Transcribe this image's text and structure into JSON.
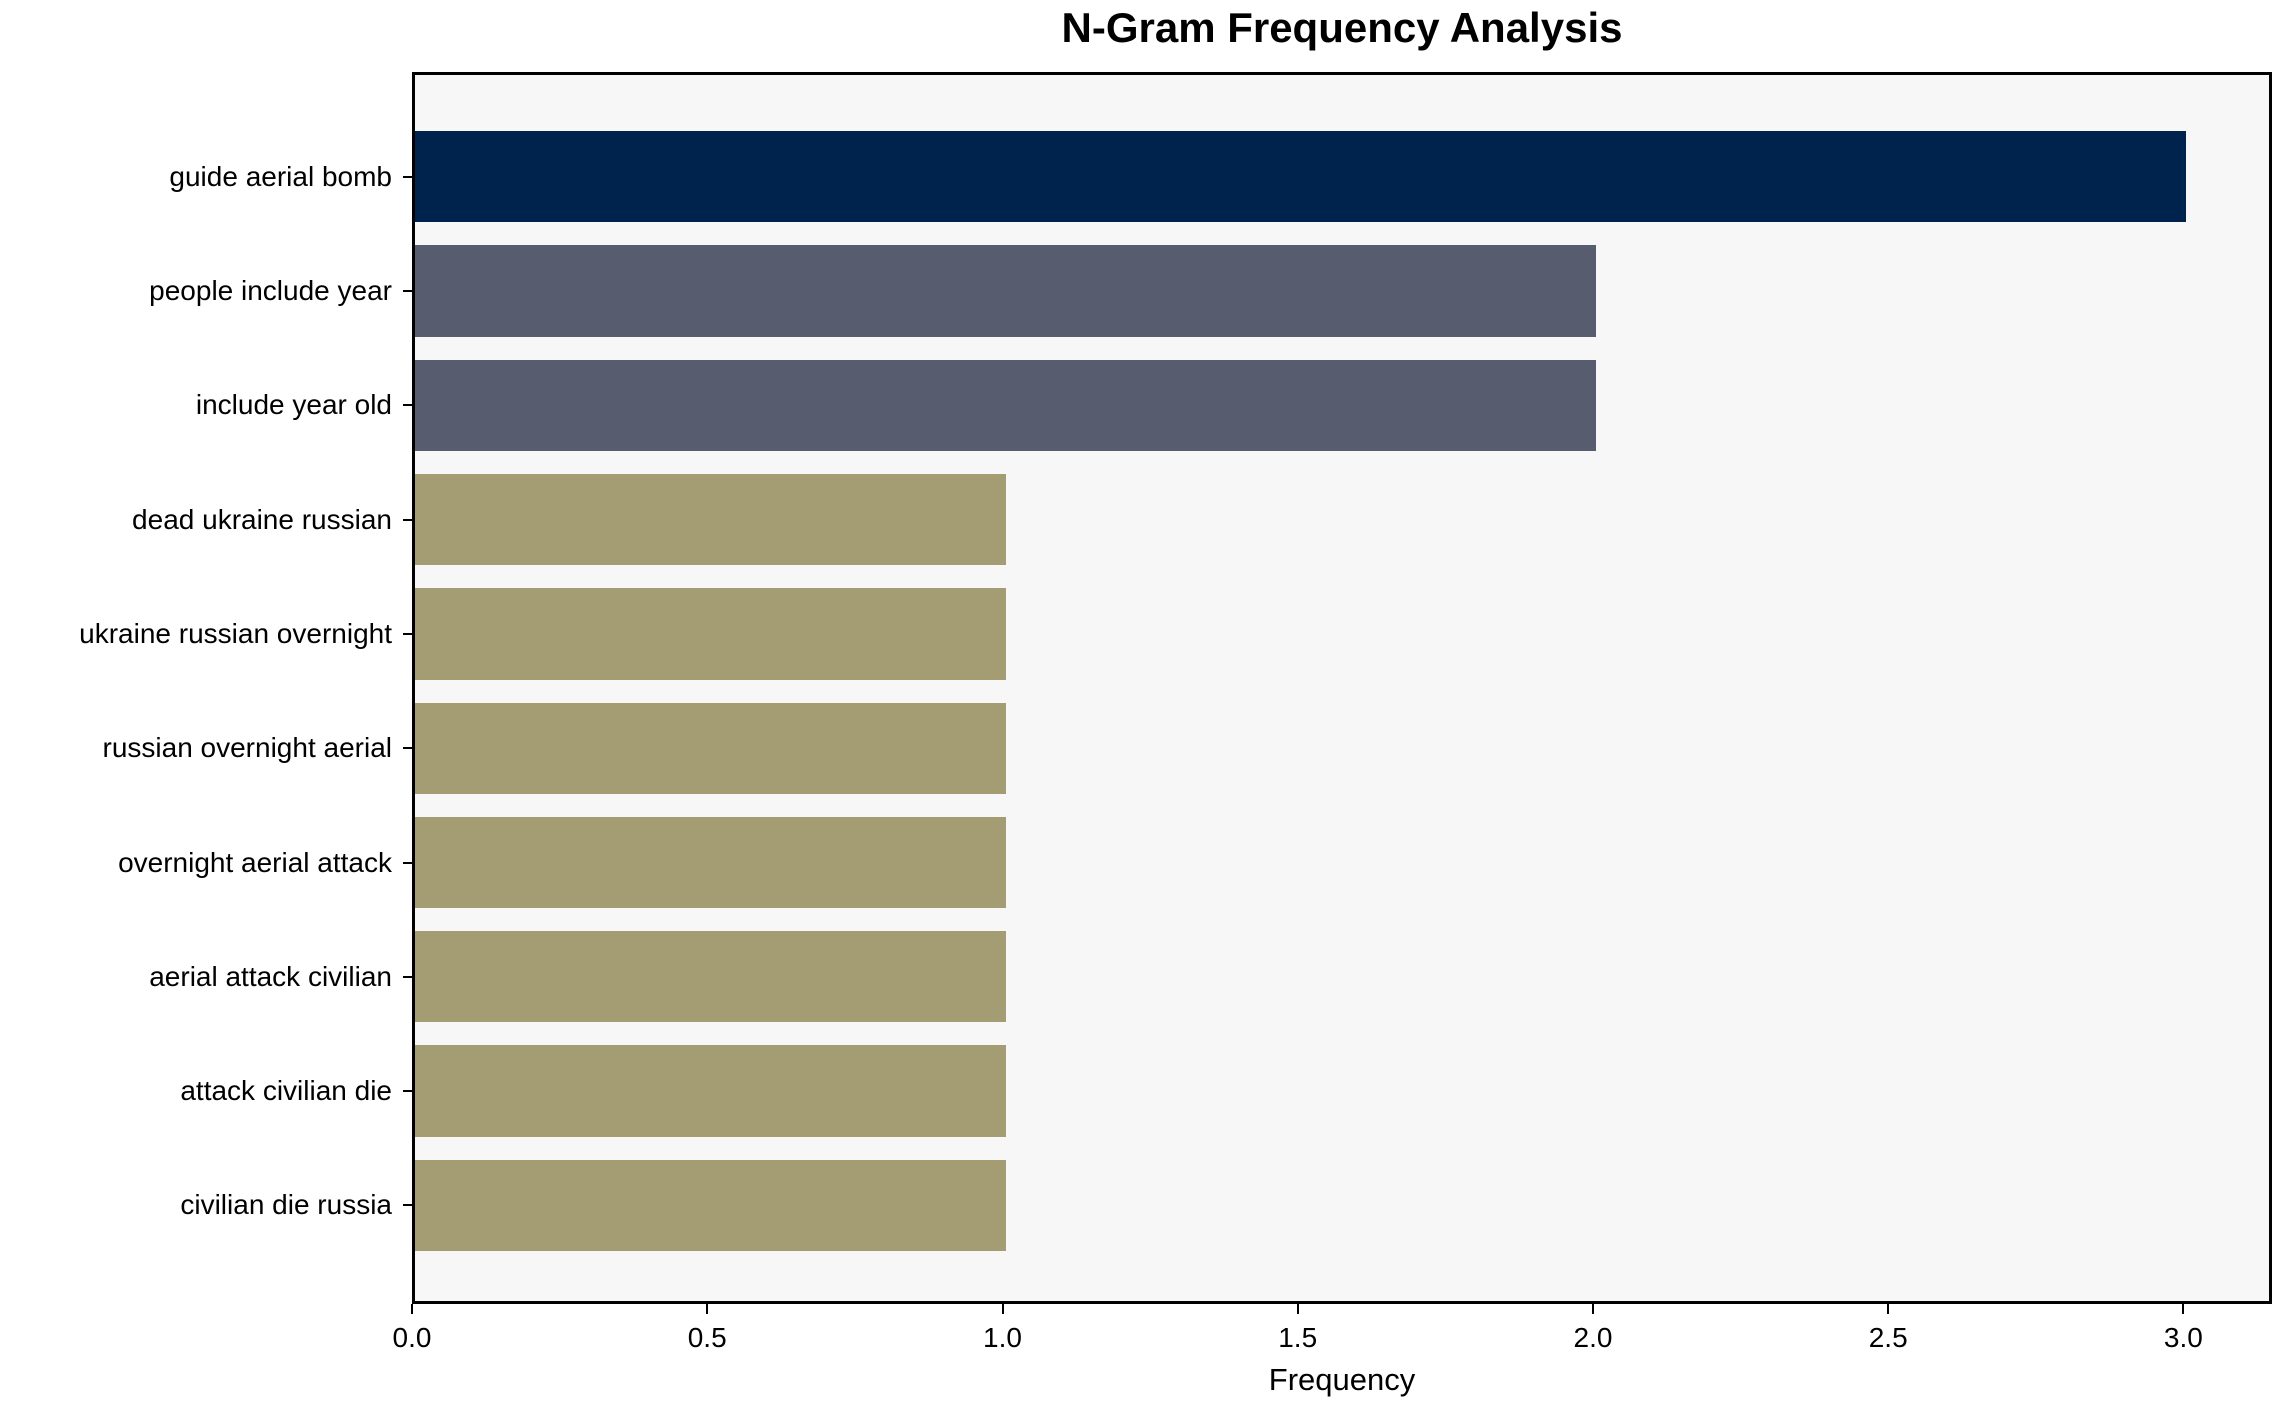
{
  "chart_data": {
    "type": "bar",
    "orientation": "horizontal",
    "title": "N-Gram Frequency Analysis",
    "xlabel": "Frequency",
    "ylabel": "",
    "categories": [
      "guide aerial bomb",
      "people include year",
      "include year old",
      "dead ukraine russian",
      "ukraine russian overnight",
      "russian overnight aerial",
      "overnight aerial attack",
      "aerial attack civilian",
      "attack civilian die",
      "civilian die russia"
    ],
    "values": [
      3,
      2,
      2,
      1,
      1,
      1,
      1,
      1,
      1,
      1
    ],
    "bar_colors": [
      "#00234e",
      "#575d6e",
      "#575d6e",
      "#a49d73",
      "#a49d73",
      "#a49d73",
      "#a49d73",
      "#a49d73",
      "#a49d73",
      "#a49d73"
    ],
    "xlim": [
      0,
      3.15
    ],
    "xticks": [
      0.0,
      0.5,
      1.0,
      1.5,
      2.0,
      2.5,
      3.0
    ],
    "xtick_labels": [
      "0.0",
      "0.5",
      "1.0",
      "1.5",
      "2.0",
      "2.5",
      "3.0"
    ],
    "grid": false,
    "legend_position": "none",
    "plot_background": "#f7f7f7",
    "spine_color": "#000000"
  }
}
